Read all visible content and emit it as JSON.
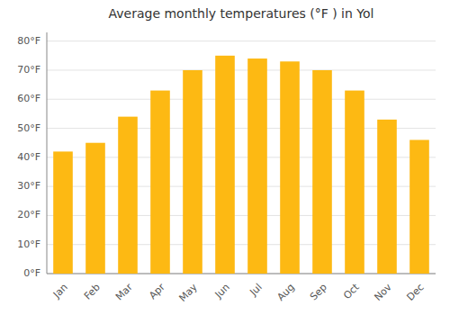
{
  "chart_data": {
    "type": "bar",
    "title": "Average monthly temperatures (°F ) in Yol",
    "categories": [
      "Jan",
      "Feb",
      "Mar",
      "Apr",
      "May",
      "Jun",
      "Jul",
      "Aug",
      "Sep",
      "Oct",
      "Nov",
      "Dec"
    ],
    "values": [
      42,
      45,
      54,
      63,
      70,
      75,
      74,
      73,
      70,
      63,
      53,
      46
    ],
    "color": "#FDB913",
    "ylim": [
      0,
      83
    ],
    "yticks": [
      {
        "value": 0,
        "label": "0°F"
      },
      {
        "value": 10,
        "label": "10°F"
      },
      {
        "value": 20,
        "label": "20°F"
      },
      {
        "value": 30,
        "label": "30°F"
      },
      {
        "value": 40,
        "label": "40°F"
      },
      {
        "value": 50,
        "label": "50°F"
      },
      {
        "value": 60,
        "label": "60°F"
      },
      {
        "value": 70,
        "label": "70°F"
      },
      {
        "value": 80,
        "label": "80°F"
      }
    ],
    "grid": true
  }
}
